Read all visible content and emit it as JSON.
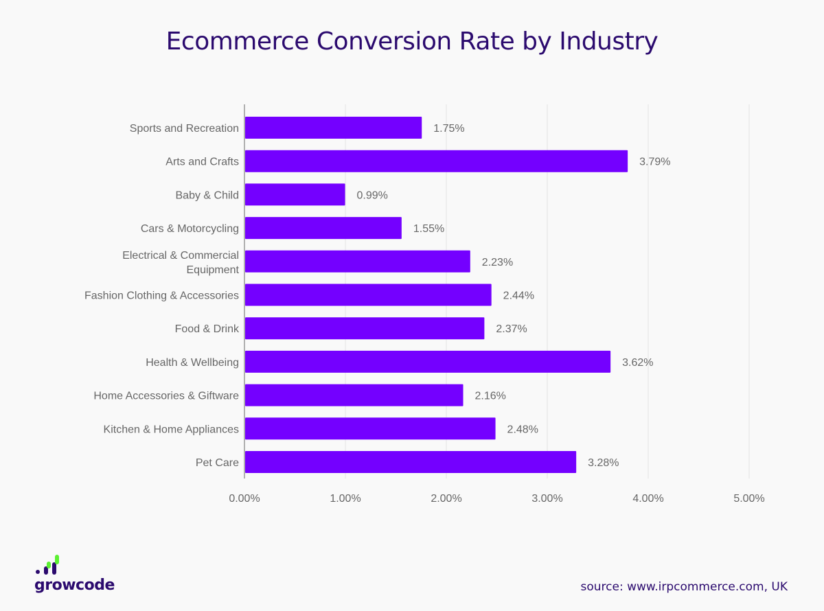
{
  "chart_data": {
    "type": "bar",
    "orientation": "horizontal",
    "title": "Ecommerce Conversion Rate by Industry",
    "categories": [
      "Sports and Recreation",
      "Arts and Crafts",
      "Baby & Child",
      "Cars & Motorcycling",
      "Electrical & Commercial Equipment",
      "Fashion Clothing & Accessories",
      "Food & Drink",
      "Health & Wellbeing",
      "Home Accessories & Giftware",
      "Kitchen & Home Appliances",
      "Pet Care"
    ],
    "values": [
      1.75,
      3.79,
      0.99,
      1.55,
      2.23,
      2.44,
      2.37,
      3.62,
      2.16,
      2.48,
      3.28
    ],
    "data_labels": [
      "1.75%",
      "3.79%",
      "0.99%",
      "1.55%",
      "2.23%",
      "2.44%",
      "2.37%",
      "3.62%",
      "2.16%",
      "2.48%",
      "3.28%"
    ],
    "xlim": [
      0,
      5
    ],
    "x_ticks": [
      "0.00%",
      "1.00%",
      "2.00%",
      "3.00%",
      "4.00%",
      "5.00%"
    ],
    "xlabel": "",
    "ylabel": "",
    "grid": "vertical",
    "legend": "none",
    "bar_color": "#7400ff"
  },
  "brand": {
    "name": "growcode",
    "text_color": "#2b0a6e",
    "accent_color": "#5cf032"
  },
  "source": "source: www.irpcommerce.com, UK"
}
